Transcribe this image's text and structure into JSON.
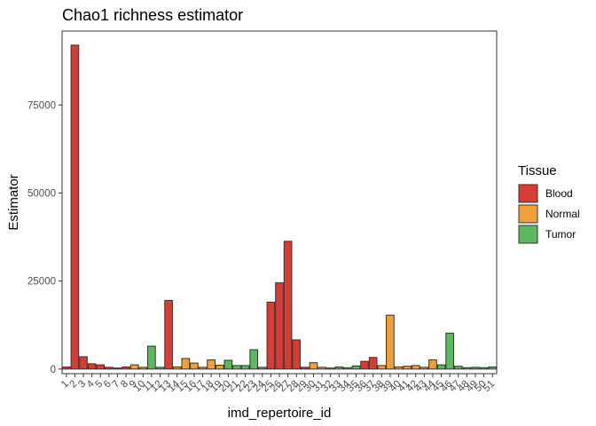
{
  "chart_data": {
    "type": "bar",
    "title": "Chao1 richness estimator",
    "xlabel": "imd_repertoire_id",
    "ylabel": "Estimator",
    "ylim": [
      -1300,
      96000
    ],
    "yticks": [
      0,
      25000,
      50000,
      75000
    ],
    "grid": false,
    "legend_title": "Tissue",
    "legend_position": "right",
    "groups": [
      {
        "name": "Blood",
        "color": "#d93b35"
      },
      {
        "name": "Normal",
        "color": "#f0a03a"
      },
      {
        "name": "Tumor",
        "color": "#5cb85c"
      }
    ],
    "categories": [
      "1",
      "2",
      "3",
      "4",
      "5",
      "6",
      "7",
      "8",
      "9",
      "10",
      "11",
      "12",
      "13",
      "14",
      "15",
      "16",
      "17",
      "18",
      "19",
      "20",
      "21",
      "22",
      "23",
      "24",
      "25",
      "26",
      "27",
      "28",
      "29",
      "30",
      "31",
      "32",
      "33",
      "34",
      "35",
      "36",
      "37",
      "38",
      "39",
      "40",
      "41",
      "42",
      "43",
      "44",
      "45",
      "46",
      "47",
      "48",
      "49",
      "50",
      "51"
    ],
    "values": [
      600,
      92000,
      3500,
      1500,
      1200,
      500,
      300,
      600,
      1200,
      500,
      6500,
      500,
      19500,
      600,
      3000,
      1700,
      500,
      2600,
      1100,
      2500,
      1000,
      1000,
      5500,
      500,
      19000,
      24500,
      36300,
      8300,
      500,
      1800,
      500,
      300,
      600,
      400,
      900,
      2200,
      3300,
      1000,
      15300,
      600,
      800,
      1000,
      500,
      2600,
      1200,
      10200,
      800,
      400,
      500,
      400,
      600
    ],
    "tissue": [
      "Blood",
      "Blood",
      "Blood",
      "Blood",
      "Blood",
      "Blood",
      "Blood",
      "Blood",
      "Normal",
      "Normal",
      "Tumor",
      "Tumor",
      "Blood",
      "Normal",
      "Normal",
      "Normal",
      "Normal",
      "Normal",
      "Normal",
      "Tumor",
      "Tumor",
      "Tumor",
      "Tumor",
      "Tumor",
      "Blood",
      "Blood",
      "Blood",
      "Blood",
      "Blood",
      "Normal",
      "Normal",
      "Normal",
      "Tumor",
      "Tumor",
      "Tumor",
      "Blood",
      "Blood",
      "Normal",
      "Normal",
      "Normal",
      "Normal",
      "Normal",
      "Normal",
      "Normal",
      "Tumor",
      "Tumor",
      "Tumor",
      "Tumor",
      "Tumor",
      "Tumor",
      "Tumor"
    ]
  }
}
